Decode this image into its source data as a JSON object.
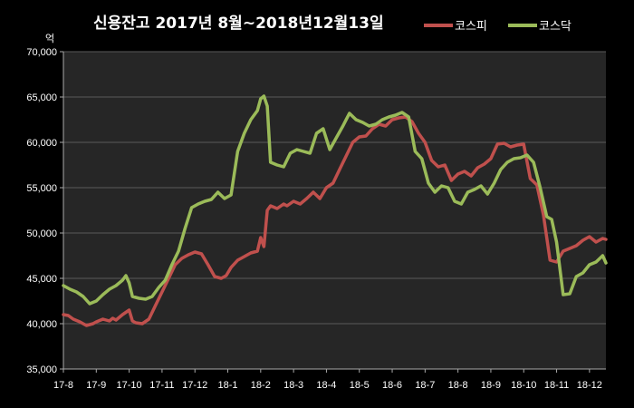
{
  "chart_data": {
    "type": "line",
    "title": "신용잔고  2017년 8월~2018년12월13일",
    "unit_label": "억",
    "ylim": [
      35000,
      70000
    ],
    "yticks": [
      35000,
      40000,
      45000,
      50000,
      55000,
      60000,
      65000,
      70000
    ],
    "ytick_labels": [
      "35,000",
      "40,000",
      "45,000",
      "50,000",
      "55,000",
      "60,000",
      "65,000",
      "70,000"
    ],
    "xlim": [
      0,
      16.5
    ],
    "categories": [
      "17-8",
      "17-9",
      "17-10",
      "17-11",
      "17-12",
      "18-1",
      "18-2",
      "18-3",
      "18-4",
      "18-5",
      "18-6",
      "18-7",
      "18-8",
      "18-9",
      "18-10",
      "18-11",
      "18-12"
    ],
    "grid": "horizontal",
    "legend_position": "top-right",
    "series": [
      {
        "name": "코스피",
        "color": "#c0504d",
        "x": [
          0,
          0.15,
          0.3,
          0.5,
          0.7,
          0.9,
          1.0,
          1.2,
          1.4,
          1.5,
          1.6,
          1.8,
          2.0,
          2.1,
          2.2,
          2.4,
          2.6,
          2.8,
          3.0,
          3.2,
          3.4,
          3.6,
          3.8,
          4.0,
          4.2,
          4.4,
          4.6,
          4.8,
          4.95,
          5.1,
          5.3,
          5.5,
          5.7,
          5.9,
          6.0,
          6.1,
          6.2,
          6.3,
          6.5,
          6.7,
          6.8,
          7.0,
          7.2,
          7.4,
          7.6,
          7.8,
          8.0,
          8.2,
          8.4,
          8.6,
          8.8,
          9.0,
          9.2,
          9.4,
          9.6,
          9.8,
          10.0,
          10.2,
          10.4,
          10.6,
          10.8,
          11.0,
          11.2,
          11.4,
          11.6,
          11.8,
          12.0,
          12.2,
          12.4,
          12.6,
          12.8,
          13.0,
          13.2,
          13.4,
          13.6,
          13.8,
          14.0,
          14.2,
          14.4,
          14.6,
          14.8,
          15.0,
          15.2,
          15.4,
          15.6,
          15.8,
          16.0,
          16.2,
          16.4,
          16.5
        ],
        "values": [
          41000,
          40900,
          40500,
          40200,
          39800,
          40000,
          40200,
          40500,
          40300,
          40600,
          40400,
          41000,
          41500,
          40300,
          40100,
          40000,
          40500,
          42000,
          43500,
          45000,
          46500,
          47200,
          47600,
          47900,
          47700,
          46500,
          45200,
          45000,
          45300,
          46200,
          47000,
          47400,
          47800,
          48000,
          49500,
          48500,
          52500,
          53000,
          52700,
          53200,
          53000,
          53500,
          53200,
          53800,
          54500,
          53800,
          55000,
          55500,
          57000,
          58500,
          60000,
          60600,
          60700,
          61500,
          62000,
          61800,
          62500,
          62700,
          62800,
          62300,
          61000,
          60000,
          58000,
          57300,
          57500,
          55800,
          56500,
          56800,
          56300,
          57200,
          57600,
          58200,
          59800,
          59900,
          59500,
          59700,
          59800,
          56000,
          55300,
          52000,
          47000,
          46800,
          48000,
          48300,
          48600,
          49200,
          49600,
          49000,
          49400,
          49300
        ]
      },
      {
        "name": "코스닥",
        "color": "#9bbb59",
        "x": [
          0,
          0.2,
          0.4,
          0.6,
          0.8,
          1.0,
          1.2,
          1.4,
          1.6,
          1.8,
          1.9,
          2.0,
          2.1,
          2.3,
          2.5,
          2.7,
          2.9,
          3.1,
          3.3,
          3.5,
          3.7,
          3.9,
          4.1,
          4.3,
          4.5,
          4.7,
          4.9,
          5.1,
          5.3,
          5.5,
          5.7,
          5.9,
          6.0,
          6.1,
          6.2,
          6.3,
          6.5,
          6.7,
          6.9,
          7.1,
          7.3,
          7.5,
          7.7,
          7.9,
          8.1,
          8.3,
          8.5,
          8.7,
          8.9,
          9.1,
          9.3,
          9.5,
          9.7,
          9.9,
          10.1,
          10.3,
          10.5,
          10.7,
          10.9,
          11.1,
          11.3,
          11.5,
          11.7,
          11.9,
          12.1,
          12.3,
          12.5,
          12.7,
          12.9,
          13.1,
          13.3,
          13.5,
          13.7,
          13.9,
          14.1,
          14.3,
          14.5,
          14.7,
          14.85,
          15.0,
          15.2,
          15.4,
          15.6,
          15.8,
          16.0,
          16.2,
          16.4,
          16.5
        ],
        "values": [
          44200,
          43800,
          43500,
          43000,
          42200,
          42500,
          43200,
          43800,
          44200,
          44800,
          45300,
          44500,
          43000,
          42800,
          42700,
          43000,
          44000,
          44800,
          46500,
          48000,
          50500,
          52800,
          53200,
          53500,
          53700,
          54500,
          53800,
          54200,
          59000,
          61000,
          62500,
          63500,
          64800,
          65100,
          64000,
          57800,
          57500,
          57300,
          58800,
          59200,
          59000,
          58800,
          61000,
          61500,
          59200,
          60500,
          61800,
          63200,
          62500,
          62200,
          61800,
          62000,
          62500,
          62800,
          63000,
          63300,
          62800,
          59000,
          58200,
          55500,
          54500,
          55200,
          55000,
          53500,
          53200,
          54500,
          54800,
          55200,
          54300,
          55500,
          57000,
          57800,
          58200,
          58300,
          58600,
          57800,
          55000,
          51800,
          51500,
          49000,
          43200,
          43300,
          45200,
          45600,
          46500,
          46800,
          47500,
          46700
        ]
      }
    ]
  }
}
